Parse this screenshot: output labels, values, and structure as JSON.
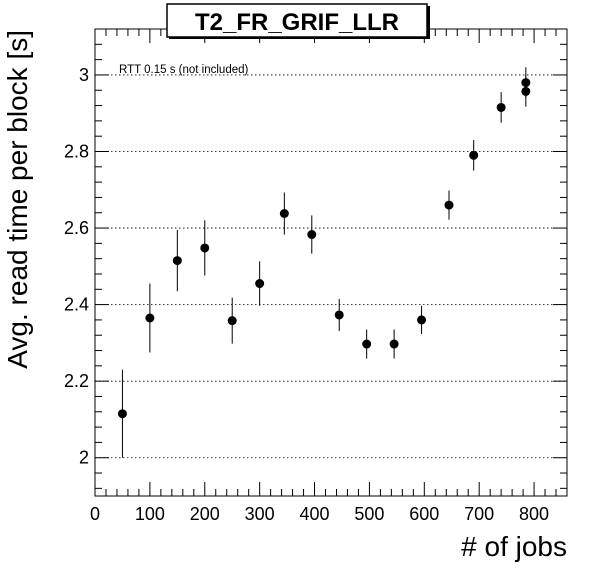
{
  "chart_data": {
    "type": "scatter",
    "title": "T2_FR_GRIF_LLR",
    "xlabel": "# of jobs",
    "ylabel": "Avg. read time per block [s]",
    "annotation": "RTT 0.15 s (not included)",
    "xlim": [
      0,
      860
    ],
    "ylim": [
      1.9,
      3.12
    ],
    "x_ticks": [
      0,
      100,
      200,
      300,
      400,
      500,
      600,
      700,
      800
    ],
    "y_ticks": [
      2,
      2.2,
      2.4,
      2.6,
      2.8,
      3
    ],
    "x_tick_labels": [
      "0",
      "100",
      "200",
      "300",
      "400",
      "500",
      "600",
      "700",
      "800"
    ],
    "y_tick_labels": [
      "2",
      "2.2",
      "2.4",
      "2.6",
      "2.8",
      "3"
    ],
    "grid": "horizontal-dotted",
    "points": [
      {
        "x": 50,
        "y": 2.115,
        "err": 0.115
      },
      {
        "x": 100,
        "y": 2.365,
        "err": 0.09
      },
      {
        "x": 150,
        "y": 2.515,
        "err": 0.08
      },
      {
        "x": 200,
        "y": 2.548,
        "err": 0.072
      },
      {
        "x": 250,
        "y": 2.358,
        "err": 0.06
      },
      {
        "x": 300,
        "y": 2.455,
        "err": 0.058
      },
      {
        "x": 345,
        "y": 2.638,
        "err": 0.055
      },
      {
        "x": 395,
        "y": 2.583,
        "err": 0.05
      },
      {
        "x": 445,
        "y": 2.373,
        "err": 0.042
      },
      {
        "x": 495,
        "y": 2.297,
        "err": 0.038
      },
      {
        "x": 545,
        "y": 2.297,
        "err": 0.038
      },
      {
        "x": 595,
        "y": 2.36,
        "err": 0.037
      },
      {
        "x": 645,
        "y": 2.66,
        "err": 0.038
      },
      {
        "x": 690,
        "y": 2.79,
        "err": 0.04
      },
      {
        "x": 740,
        "y": 2.915,
        "err": 0.04
      },
      {
        "x": 785,
        "y": 2.98,
        "err": 0.04
      },
      {
        "x": 785,
        "y": 2.957,
        "err": 0.04
      }
    ]
  }
}
